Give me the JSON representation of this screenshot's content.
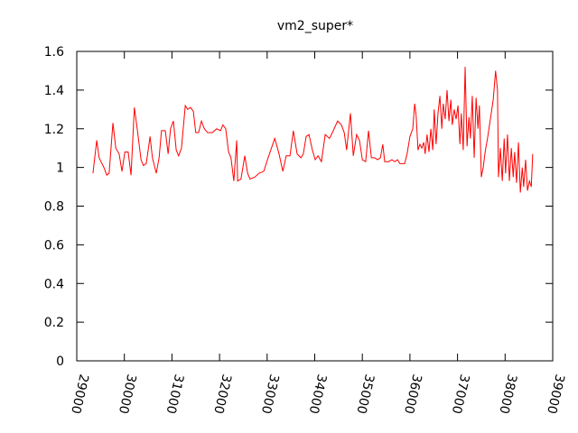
{
  "chart_data": {
    "type": "line",
    "title": "vm2_super*",
    "x": [
      29340,
      29420,
      29470,
      29570,
      29630,
      29680,
      29760,
      29820,
      29890,
      29950,
      30010,
      30080,
      30140,
      30210,
      30270,
      30350,
      30400,
      30460,
      30540,
      30590,
      30670,
      30730,
      30780,
      30860,
      30920,
      30970,
      31030,
      31090,
      31140,
      31200,
      31280,
      31330,
      31390,
      31450,
      31500,
      31560,
      31620,
      31680,
      31750,
      31850,
      31940,
      32020,
      32070,
      32130,
      32190,
      32240,
      32300,
      32360,
      32380,
      32450,
      32530,
      32590,
      32640,
      32740,
      32830,
      32930,
      33020,
      33160,
      33250,
      33330,
      33400,
      33480,
      33550,
      33630,
      33710,
      33760,
      33820,
      33880,
      33950,
      34010,
      34070,
      34140,
      34220,
      34310,
      34390,
      34480,
      34560,
      34620,
      34670,
      34750,
      34810,
      34880,
      34940,
      35000,
      35070,
      35130,
      35190,
      35260,
      35320,
      35380,
      35430,
      35470,
      35550,
      35620,
      35680,
      35740,
      35790,
      35890,
      35940,
      36000,
      36060,
      36100,
      36130,
      36170,
      36210,
      36250,
      36290,
      36320,
      36360,
      36400,
      36440,
      36480,
      36510,
      36550,
      36590,
      36630,
      36670,
      36700,
      36740,
      36780,
      36820,
      36860,
      36890,
      36930,
      36970,
      37010,
      37050,
      37080,
      37120,
      37160,
      37200,
      37240,
      37270,
      37310,
      37350,
      37390,
      37430,
      37460,
      37500,
      37540,
      37580,
      37630,
      37690,
      37750,
      37800,
      37840,
      37860,
      37900,
      37940,
      37980,
      38010,
      38050,
      38090,
      38130,
      38170,
      38200,
      38240,
      38280,
      38320,
      38360,
      38390,
      38430,
      38470,
      38510,
      38550,
      38580
    ],
    "values": [
      0.97,
      1.14,
      1.05,
      1.0,
      0.96,
      0.97,
      1.23,
      1.1,
      1.07,
      0.98,
      1.08,
      1.08,
      0.96,
      1.31,
      1.2,
      1.04,
      1.01,
      1.02,
      1.16,
      1.05,
      0.97,
      1.05,
      1.19,
      1.19,
      1.07,
      1.2,
      1.24,
      1.09,
      1.06,
      1.1,
      1.32,
      1.3,
      1.31,
      1.29,
      1.18,
      1.18,
      1.24,
      1.2,
      1.18,
      1.18,
      1.2,
      1.19,
      1.22,
      1.2,
      1.08,
      1.05,
      0.93,
      1.14,
      0.93,
      0.94,
      1.06,
      0.97,
      0.94,
      0.95,
      0.97,
      0.98,
      1.05,
      1.15,
      1.07,
      0.98,
      1.06,
      1.06,
      1.19,
      1.07,
      1.05,
      1.07,
      1.16,
      1.17,
      1.09,
      1.04,
      1.06,
      1.03,
      1.17,
      1.15,
      1.19,
      1.24,
      1.22,
      1.18,
      1.09,
      1.28,
      1.06,
      1.17,
      1.14,
      1.04,
      1.03,
      1.19,
      1.05,
      1.05,
      1.04,
      1.05,
      1.12,
      1.03,
      1.03,
      1.04,
      1.03,
      1.04,
      1.02,
      1.02,
      1.07,
      1.16,
      1.2,
      1.33,
      1.27,
      1.09,
      1.12,
      1.1,
      1.13,
      1.07,
      1.17,
      1.08,
      1.2,
      1.09,
      1.3,
      1.12,
      1.28,
      1.37,
      1.2,
      1.33,
      1.25,
      1.4,
      1.24,
      1.35,
      1.22,
      1.3,
      1.25,
      1.32,
      1.12,
      1.28,
      1.09,
      1.52,
      1.11,
      1.26,
      1.15,
      1.37,
      1.05,
      1.36,
      1.2,
      1.32,
      0.95,
      1.0,
      1.08,
      1.15,
      1.25,
      1.35,
      1.5,
      1.4,
      0.95,
      1.1,
      0.93,
      1.15,
      0.97,
      1.17,
      0.93,
      1.1,
      0.95,
      1.08,
      0.92,
      1.13,
      0.87,
      1.0,
      0.9,
      1.04,
      0.88,
      0.93,
      0.9,
      1.07
    ],
    "color": "#ff0000",
    "xlim": [
      29000,
      39000
    ],
    "xticks": [
      29000,
      30000,
      31000,
      32000,
      33000,
      34000,
      35000,
      36000,
      37000,
      38000,
      39000
    ],
    "ylim": [
      0,
      1.6
    ],
    "yticks": [
      0,
      0.2,
      0.4,
      0.6,
      0.8,
      1,
      1.2,
      1.4,
      1.6
    ]
  }
}
